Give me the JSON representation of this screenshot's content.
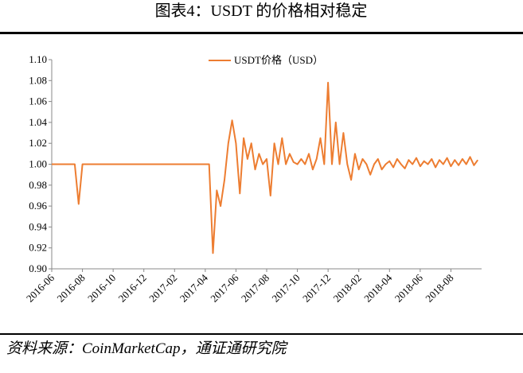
{
  "chart_data": {
    "type": "line",
    "title": "图表4：USDT 的价格相对稳定",
    "source": "资料来源：CoinMarketCap，通证通研究院",
    "x": [
      "2016-06",
      "2016-06",
      "2016-06",
      "2016-06",
      "2016-07",
      "2016-07",
      "2016-07",
      "2016-07",
      "2016-08",
      "2016-08",
      "2016-08",
      "2016-08",
      "2016-09",
      "2016-09",
      "2016-09",
      "2016-09",
      "2016-10",
      "2016-10",
      "2016-10",
      "2016-10",
      "2016-11",
      "2016-11",
      "2016-11",
      "2016-11",
      "2016-12",
      "2016-12",
      "2016-12",
      "2016-12",
      "2017-01",
      "2017-01",
      "2017-01",
      "2017-01",
      "2017-02",
      "2017-02",
      "2017-02",
      "2017-02",
      "2017-03",
      "2017-03",
      "2017-03",
      "2017-03",
      "2017-04",
      "2017-04",
      "2017-04",
      "2017-04",
      "2017-05",
      "2017-05",
      "2017-05",
      "2017-05",
      "2017-06",
      "2017-06",
      "2017-06",
      "2017-06",
      "2017-07",
      "2017-07",
      "2017-07",
      "2017-07",
      "2017-08",
      "2017-08",
      "2017-08",
      "2017-08",
      "2017-09",
      "2017-09",
      "2017-09",
      "2017-09",
      "2017-10",
      "2017-10",
      "2017-10",
      "2017-10",
      "2017-11",
      "2017-11",
      "2017-11",
      "2017-11",
      "2017-12",
      "2017-12",
      "2017-12",
      "2017-12",
      "2018-01",
      "2018-01",
      "2018-01",
      "2018-01",
      "2018-02",
      "2018-02",
      "2018-02",
      "2018-02",
      "2018-03",
      "2018-03",
      "2018-03",
      "2018-03",
      "2018-04",
      "2018-04",
      "2018-04",
      "2018-04",
      "2018-05",
      "2018-05",
      "2018-05",
      "2018-05",
      "2018-06",
      "2018-06",
      "2018-06",
      "2018-06",
      "2018-07",
      "2018-07",
      "2018-07",
      "2018-07",
      "2018-08",
      "2018-08",
      "2018-08",
      "2018-08",
      "2018-09",
      "2018-09",
      "2018-09",
      "2018-09"
    ],
    "series": [
      {
        "name": "USDT价格（USD）",
        "color": "#ED7D31",
        "values": [
          1.0,
          1.0,
          1.0,
          1.0,
          1.0,
          1.0,
          1.0,
          0.962,
          1.0,
          1.0,
          1.0,
          1.0,
          1.0,
          1.0,
          1.0,
          1.0,
          1.0,
          1.0,
          1.0,
          1.0,
          1.0,
          1.0,
          1.0,
          1.0,
          1.0,
          1.0,
          1.0,
          1.0,
          1.0,
          1.0,
          1.0,
          1.0,
          1.0,
          1.0,
          1.0,
          1.0,
          1.0,
          1.0,
          1.0,
          1.0,
          1.0,
          1.0,
          0.915,
          0.975,
          0.96,
          0.985,
          1.02,
          1.042,
          1.02,
          0.972,
          1.025,
          1.005,
          1.02,
          0.995,
          1.01,
          1.0,
          1.005,
          0.97,
          1.02,
          1.0,
          1.025,
          1.0,
          1.01,
          1.002,
          1.0,
          1.005,
          1.0,
          1.01,
          0.995,
          1.005,
          1.025,
          1.0,
          1.078,
          1.0,
          1.04,
          1.0,
          1.03,
          1.0,
          0.985,
          1.01,
          0.995,
          1.005,
          1.0,
          0.99,
          1.0,
          1.005,
          0.995,
          1.0,
          1.003,
          0.997,
          1.005,
          1.0,
          0.996,
          1.004,
          1.0,
          1.006,
          0.998,
          1.003,
          1.0,
          1.005,
          0.997,
          1.004,
          1.0,
          1.006,
          0.998,
          1.004,
          0.999,
          1.005,
          1.0,
          1.007,
          0.999,
          1.004
        ]
      }
    ],
    "xticks": [
      "2016-06",
      "2016-08",
      "2016-10",
      "2016-12",
      "2017-02",
      "2017-04",
      "2017-06",
      "2017-08",
      "2017-10",
      "2017-12",
      "2018-02",
      "2018-04",
      "2018-06",
      "2018-08"
    ],
    "ylim": [
      0.9,
      1.1
    ],
    "yticks": [
      {
        "value": 0.9,
        "label": "0.90"
      },
      0.92,
      0.94,
      0.96,
      0.98,
      {
        "value": 1.0,
        "label": "1.00"
      },
      1.02,
      1.04,
      1.06,
      1.08,
      {
        "value": 1.1,
        "label": "1.10"
      }
    ],
    "grid": false,
    "legend": "top"
  }
}
